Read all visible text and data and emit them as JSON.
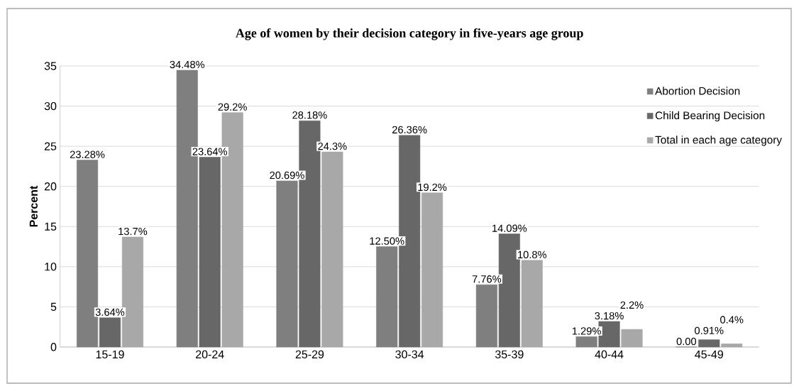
{
  "chart_data": {
    "type": "bar",
    "title": "Age of women by their decision category in five-years age group",
    "ylabel": "Percent",
    "categories": [
      "15-19",
      "20-24",
      "25-29",
      "30-34",
      "35-39",
      "40-44",
      "45-49"
    ],
    "series": [
      {
        "name": "Abortion Decision",
        "color": "#7f7f7f",
        "values": [
          23.28,
          34.48,
          20.69,
          12.5,
          7.76,
          1.29,
          0.0
        ],
        "value_labels": [
          "23.28%",
          "34.48%",
          "20.69%",
          "12.50%",
          "7.76%",
          "1.29%",
          "0.00"
        ]
      },
      {
        "name": "Child Bearing Decision",
        "color": "#676767",
        "values": [
          3.64,
          23.64,
          28.18,
          26.36,
          14.09,
          3.18,
          0.91
        ],
        "value_labels": [
          "3.64%",
          "23.64%",
          "28.18%",
          "26.36%",
          "14.09%",
          "3.18%",
          "0.91%"
        ]
      },
      {
        "name": "Total in each age category",
        "color": "#a8a8a8",
        "values": [
          13.7,
          29.2,
          24.3,
          19.2,
          10.8,
          2.2,
          0.4
        ],
        "value_labels": [
          "13.7%",
          "29.2%",
          "24.3%",
          "19.2%",
          "10.8%",
          "2.2%",
          "0.4%"
        ]
      }
    ],
    "ylim": [
      0,
      35
    ],
    "yticks": [
      0,
      5,
      10,
      15,
      20,
      25,
      30,
      35
    ],
    "grid": "y",
    "legend": "right"
  }
}
